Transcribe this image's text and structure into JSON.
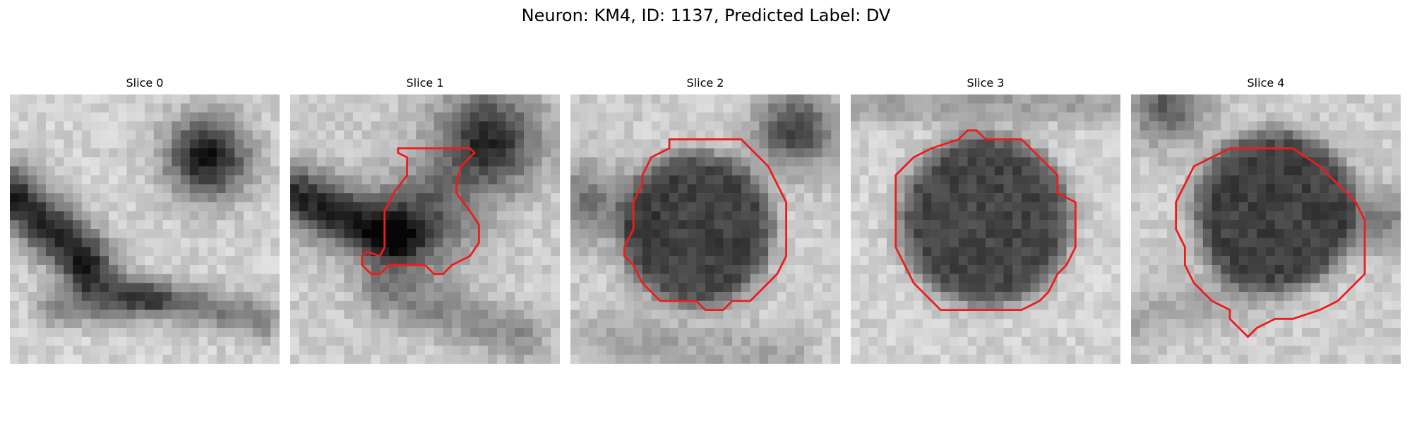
{
  "figure": {
    "title": "Neuron: KM4, ID: 1137, Predicted Label: DV"
  },
  "colors": {
    "outline": "#ee1c1c",
    "dark": "#111111",
    "light": "#f2f2f2"
  },
  "panels": [
    {
      "title": "Slice 0",
      "has_outline": false
    },
    {
      "title": "Slice 1",
      "has_outline": true
    },
    {
      "title": "Slice 2",
      "has_outline": true
    },
    {
      "title": "Slice 3",
      "has_outline": true
    },
    {
      "title": "Slice 4",
      "has_outline": true
    }
  ]
}
